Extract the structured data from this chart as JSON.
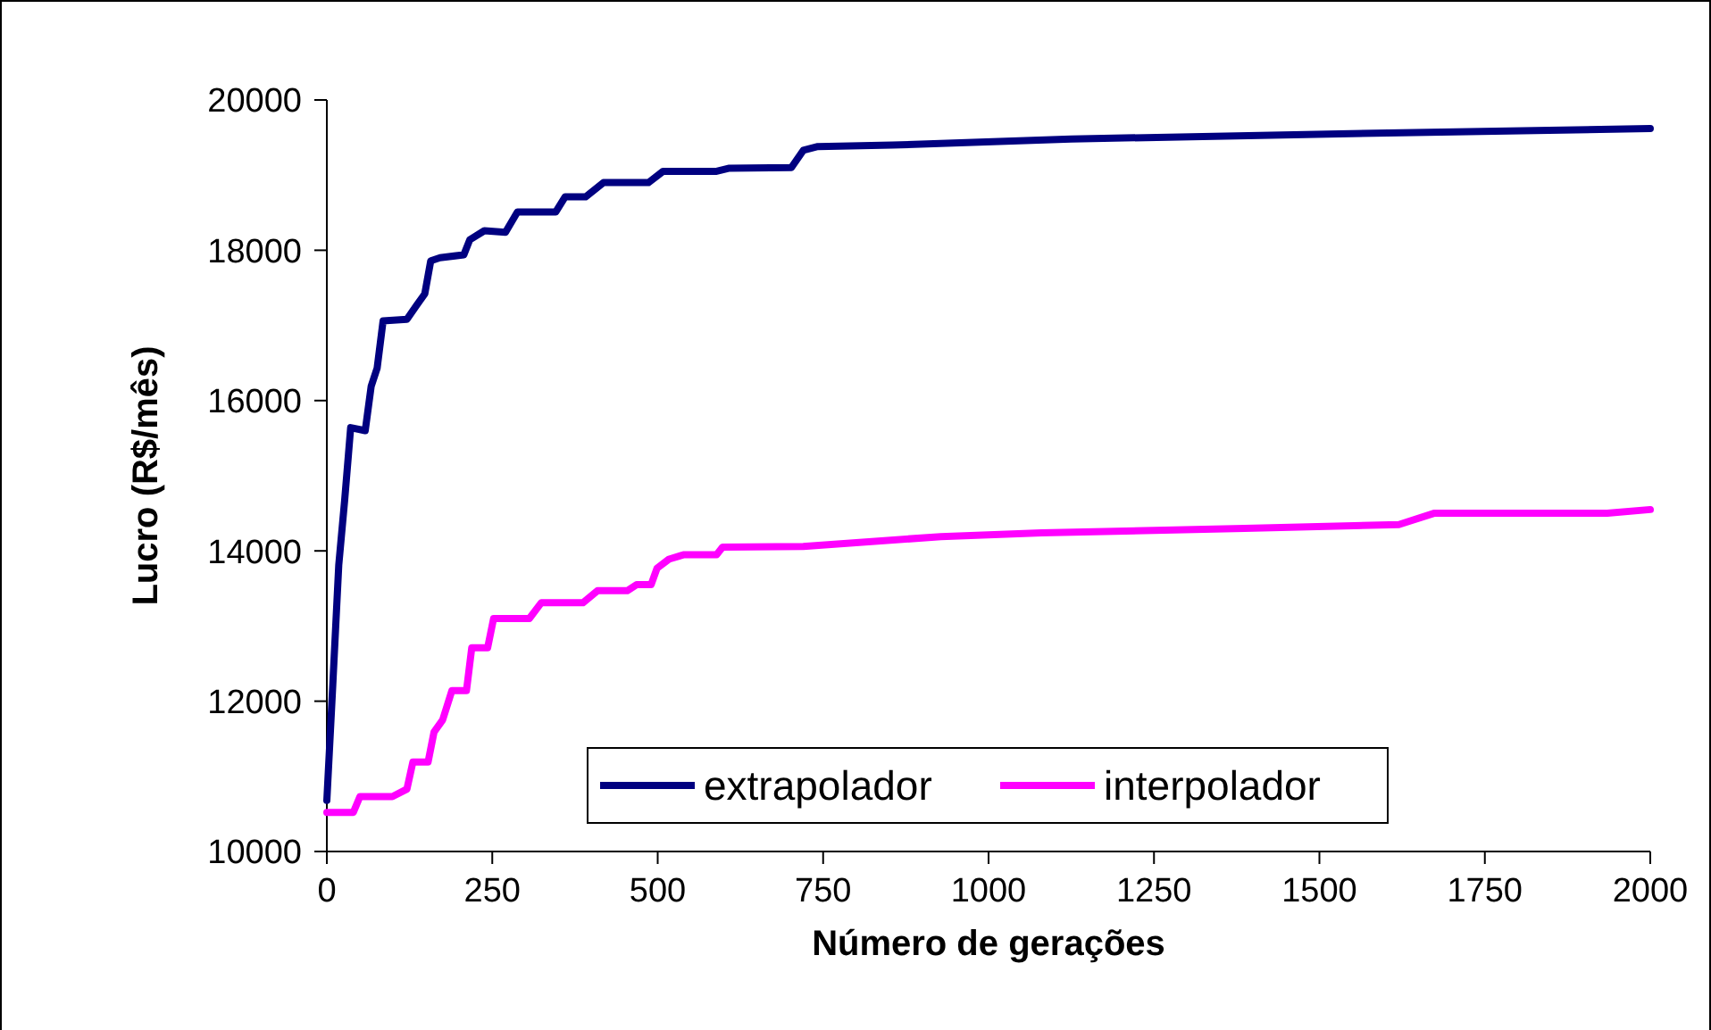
{
  "chart_data": {
    "type": "line",
    "xlabel": "Número de gerações",
    "ylabel": "Lucro (R$/mês)",
    "xlim": [
      0,
      2000
    ],
    "xticks": [
      0,
      250,
      500,
      750,
      1000,
      1250,
      1500,
      1750,
      2000
    ],
    "ylim": [
      10000,
      20000
    ],
    "yticks": [
      10000,
      12000,
      14000,
      16000,
      18000,
      20000
    ],
    "grid": false,
    "legend": "bottom right",
    "marker": "none",
    "line_style": "solid",
    "series": [
      {
        "name": "extrapolador",
        "color": "#000080",
        "x": [
          0,
          9,
          18,
          27,
          36,
          58,
          67,
          76,
          85,
          121,
          135,
          148,
          157,
          171,
          207,
          216,
          238,
          270,
          288,
          346,
          360,
          391,
          418,
          486,
          508,
          589,
          607,
          702,
          720,
          742,
          855,
          1125,
          1530,
          2000
        ],
        "values": [
          10680,
          12220,
          13810,
          14680,
          15640,
          15600,
          16190,
          16430,
          17060,
          17080,
          17260,
          17420,
          17860,
          17900,
          17940,
          18140,
          18260,
          18240,
          18510,
          18510,
          18710,
          18710,
          18900,
          18900,
          19050,
          19050,
          19090,
          19100,
          19330,
          19380,
          19400,
          19480,
          19550,
          19620
        ]
      },
      {
        "name": "interpolador",
        "color": "#ff00ff",
        "x": [
          0,
          40,
          50,
          99,
          121,
          130,
          153,
          162,
          175,
          189,
          211,
          219,
          243,
          252,
          306,
          324,
          387,
          409,
          454,
          468,
          490,
          499,
          517,
          540,
          589,
          598,
          720,
          928,
          1080,
          1387,
          1620,
          1673,
          1935,
          2000
        ],
        "values": [
          10520,
          10520,
          10730,
          10730,
          10830,
          11190,
          11190,
          11590,
          11750,
          12140,
          12140,
          12710,
          12710,
          13100,
          13100,
          13310,
          13310,
          13470,
          13470,
          13550,
          13550,
          13770,
          13890,
          13950,
          13950,
          14050,
          14060,
          14190,
          14240,
          14300,
          14350,
          14500,
          14500,
          14550
        ]
      }
    ]
  }
}
